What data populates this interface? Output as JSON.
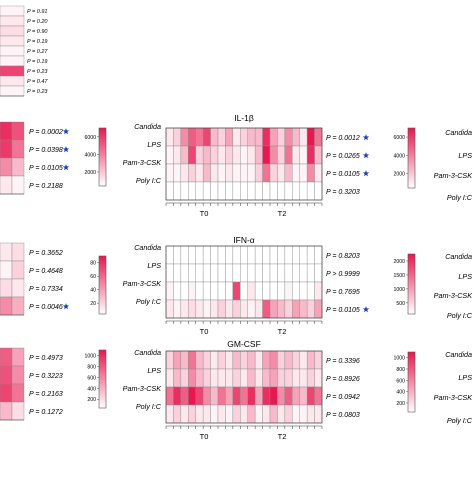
{
  "chart_data": {
    "type": "heatmap",
    "stimuli": [
      "Candida",
      "LPS",
      "Pam-3-CSK",
      "Poly I:C"
    ],
    "timepoints": [
      "T0",
      "T2"
    ],
    "colors": {
      "low": "#ffffff",
      "high": "#e8174f",
      "star": "#1a3fb8"
    },
    "top_partial": {
      "p_values": [
        "P = 0.91",
        "P = 0.20",
        "P = 0.90",
        "P = 0.19",
        "P = 0.27",
        "P = 0.19",
        "P = 0.23",
        "P = 0.47",
        "P = 0.23"
      ],
      "values": [
        0.05,
        0.1,
        0.15,
        0.1,
        0.05,
        0.05,
        0.8,
        0.1,
        0.05
      ]
    },
    "left_column": [
      {
        "p_values": [
          "P = 0.0002",
          "P = 0.0398",
          "P = 0.0105",
          "P = 0.2188"
        ],
        "significant": [
          true,
          true,
          true,
          false
        ],
        "values": [
          [
            0.9,
            0.75
          ],
          [
            0.85,
            0.6
          ],
          [
            0.5,
            0.3
          ],
          [
            0.1,
            0.05
          ]
        ]
      },
      {
        "p_values": [
          "P = 0.3652",
          "P = 0.4648",
          "P = 0.7334",
          "P = 0.0046"
        ],
        "significant": [
          false,
          false,
          false,
          true
        ],
        "values": [
          [
            0.1,
            0.15
          ],
          [
            0.05,
            0.2
          ],
          [
            0.15,
            0.1
          ],
          [
            0.5,
            0.35
          ]
        ]
      },
      {
        "p_values": [
          "P = 0.4973",
          "P = 0.3223",
          "P = 0.2163",
          "P = 0.1272"
        ],
        "significant": [
          false,
          false,
          false,
          false
        ],
        "values": [
          [
            0.7,
            0.4
          ],
          [
            0.75,
            0.5
          ],
          [
            0.8,
            0.6
          ],
          [
            0.3,
            0.15
          ]
        ]
      }
    ],
    "panels": [
      {
        "title": "IL-1β",
        "legend_ticks": [
          "6000",
          "4000",
          "2000"
        ],
        "p_values": [
          "P = 0.0012",
          "P = 0.0265",
          "P = 0.0105",
          "P = 0.3203"
        ],
        "significant": [
          true,
          true,
          true,
          false
        ],
        "values": [
          [
            0.1,
            0.2,
            0.5,
            0.7,
            0.6,
            0.8,
            0.3,
            0.2,
            0.4,
            0.1,
            0.2,
            0.3,
            0.3,
            0.9,
            0.4,
            0.2,
            0.5,
            0.3,
            0.1,
            1.0,
            0.6
          ],
          [
            0.05,
            0.1,
            0.3,
            0.8,
            0.2,
            0.3,
            0.2,
            0.1,
            0.2,
            0.1,
            0.05,
            0.1,
            0.3,
            1.0,
            0.5,
            0.2,
            0.6,
            0.1,
            0.05,
            0.9,
            0.3
          ],
          [
            0.05,
            0.05,
            0.1,
            0.2,
            0.1,
            0.3,
            0.1,
            0.05,
            0.1,
            0.05,
            0.05,
            0.05,
            0.2,
            0.6,
            0.2,
            0.1,
            0.3,
            0.05,
            0.05,
            0.5,
            0.1
          ],
          [
            0,
            0,
            0,
            0,
            0,
            0,
            0,
            0,
            0,
            0,
            0,
            0,
            0,
            0,
            0,
            0,
            0,
            0,
            0,
            0,
            0
          ]
        ]
      },
      {
        "title": "IFN-α",
        "legend_ticks": [
          "80",
          "60",
          "40",
          "20"
        ],
        "p_values": [
          "P = 0.8203",
          "P > 0.9999",
          "P = 0.7695",
          "P = 0.0105"
        ],
        "significant": [
          false,
          false,
          false,
          true
        ],
        "values": [
          [
            0,
            0,
            0,
            0,
            0,
            0,
            0,
            0,
            0,
            0,
            0,
            0,
            0,
            0,
            0,
            0,
            0,
            0,
            0,
            0,
            0
          ],
          [
            0,
            0,
            0,
            0,
            0,
            0,
            0,
            0,
            0,
            0,
            0,
            0,
            0,
            0,
            0,
            0,
            0,
            0,
            0,
            0,
            0
          ],
          [
            0.05,
            0,
            0,
            0.05,
            0,
            0,
            0,
            0,
            0,
            0.8,
            0,
            0.1,
            0,
            0,
            0,
            0,
            0.05,
            0,
            0,
            0,
            0.1
          ],
          [
            0.1,
            0.05,
            0.1,
            0.15,
            0.1,
            0.05,
            0.1,
            0.2,
            0.1,
            0.2,
            0.1,
            0.05,
            0.1,
            0.7,
            0.4,
            0.3,
            0.2,
            0.4,
            0.3,
            0.2,
            0.4
          ]
        ]
      },
      {
        "title": "GM-CSF",
        "legend_ticks": [
          "1000",
          "800",
          "600",
          "400",
          "200"
        ],
        "p_values": [
          "P = 0.3396",
          "P = 0.8926",
          "P = 0.0942",
          "P = 0.0803"
        ],
        "significant": [
          false,
          false,
          false,
          false
        ],
        "values": [
          [
            0.2,
            0.4,
            0.3,
            0.6,
            0.3,
            0.2,
            0.1,
            0.2,
            0.1,
            0.3,
            0.2,
            0.3,
            0.1,
            0.4,
            0.5,
            0.2,
            0.3,
            0.2,
            0.1,
            0.3,
            0.2
          ],
          [
            0.1,
            0.3,
            0.2,
            0.5,
            0.3,
            0.2,
            0.1,
            0.1,
            0.1,
            0.2,
            0.1,
            0.3,
            0.1,
            0.3,
            0.4,
            0.2,
            0.2,
            0.1,
            0.1,
            0.2,
            0.1
          ],
          [
            0.6,
            0.9,
            0.7,
            1.0,
            0.8,
            0.5,
            0.3,
            0.6,
            0.4,
            0.8,
            0.6,
            0.9,
            0.4,
            0.9,
            1.0,
            0.5,
            0.7,
            0.4,
            0.3,
            0.8,
            0.6
          ],
          [
            0.1,
            0.2,
            0.1,
            0.2,
            0.1,
            0.1,
            0.05,
            0.1,
            0.05,
            0.2,
            0.1,
            0.3,
            0.05,
            0.1,
            0.3,
            0.1,
            0.2,
            0.05,
            0.05,
            0.1,
            0.1
          ]
        ]
      }
    ],
    "right_column": [
      {
        "legend_ticks": [
          "6000",
          "4000",
          "2000"
        ]
      },
      {
        "legend_ticks": [
          "2000",
          "1500",
          "1000",
          "500"
        ]
      },
      {
        "legend_ticks": [
          "1000",
          "800",
          "600",
          "400",
          "200"
        ]
      }
    ]
  }
}
